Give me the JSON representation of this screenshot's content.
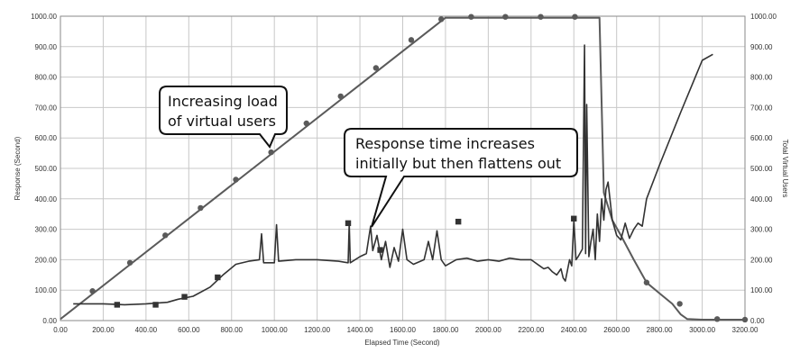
{
  "chart_data": {
    "type": "line",
    "xlabel": "Elapsed Time (Second)",
    "ylabel": "Response (Second)",
    "y2label": "Total Virtual Users",
    "xlim": [
      0,
      3200
    ],
    "ylim": [
      0,
      1000
    ],
    "y2lim": [
      0,
      1000
    ],
    "grid": true,
    "x_ticks": [
      "0.00",
      "200.00",
      "400.00",
      "600.00",
      "800.00",
      "1000.00",
      "1200.00",
      "1400.00",
      "1600.00",
      "1800.00",
      "2000.00",
      "2200.00",
      "2400.00",
      "2600.00",
      "2800.00",
      "3000.00",
      "3200.00"
    ],
    "y_ticks": [
      "0.00",
      "100.00",
      "200.00",
      "300.00",
      "400.00",
      "500.00",
      "600.00",
      "700.00",
      "800.00",
      "900.00",
      "1000.00"
    ],
    "y2_ticks": [
      "0.00",
      "100.00",
      "200.00",
      "300.00",
      "400.00",
      "500.00",
      "600.00",
      "700.00",
      "800.00",
      "900.00",
      "1000.00"
    ],
    "series": [
      {
        "key": "users",
        "color": "#5a5a5a",
        "marker": "circle",
        "axis": "right",
        "points": [
          [
            0,
            5
          ],
          [
            1800,
            995
          ],
          [
            2500,
            995
          ],
          [
            2520,
            995
          ],
          [
            2540,
            420
          ],
          [
            2580,
            330
          ],
          [
            2620,
            280
          ],
          [
            2680,
            200
          ],
          [
            2740,
            125
          ],
          [
            2800,
            90
          ],
          [
            2860,
            55
          ],
          [
            2900,
            20
          ],
          [
            2930,
            5
          ],
          [
            3000,
            3
          ],
          [
            3200,
            3
          ]
        ],
        "markers": [
          [
            150,
            97
          ],
          [
            325,
            190
          ],
          [
            490,
            280
          ],
          [
            655,
            370
          ],
          [
            820,
            463
          ],
          [
            985,
            553
          ],
          [
            1150,
            648
          ],
          [
            1310,
            737
          ],
          [
            1475,
            830
          ],
          [
            1640,
            922
          ],
          [
            1780,
            990
          ],
          [
            1920,
            998
          ],
          [
            2080,
            998
          ],
          [
            2245,
            998
          ],
          [
            2405,
            998
          ],
          [
            2740,
            125
          ],
          [
            2895,
            55
          ],
          [
            3070,
            5
          ],
          [
            3200,
            3
          ]
        ]
      },
      {
        "key": "response",
        "color": "#333333",
        "marker": "square",
        "axis": "left",
        "points": [
          [
            60,
            55
          ],
          [
            200,
            55
          ],
          [
            300,
            52
          ],
          [
            400,
            55
          ],
          [
            500,
            60
          ],
          [
            550,
            70
          ],
          [
            620,
            80
          ],
          [
            700,
            110
          ],
          [
            760,
            150
          ],
          [
            820,
            185
          ],
          [
            880,
            195
          ],
          [
            930,
            200
          ],
          [
            940,
            285
          ],
          [
            950,
            190
          ],
          [
            990,
            190
          ],
          [
            1000,
            190
          ],
          [
            1010,
            315
          ],
          [
            1020,
            195
          ],
          [
            1100,
            200
          ],
          [
            1200,
            200
          ],
          [
            1300,
            195
          ],
          [
            1345,
            190
          ],
          [
            1350,
            320
          ],
          [
            1355,
            190
          ],
          [
            1400,
            210
          ],
          [
            1430,
            220
          ],
          [
            1450,
            310
          ],
          [
            1460,
            230
          ],
          [
            1480,
            280
          ],
          [
            1500,
            200
          ],
          [
            1520,
            260
          ],
          [
            1540,
            175
          ],
          [
            1560,
            240
          ],
          [
            1580,
            195
          ],
          [
            1600,
            300
          ],
          [
            1620,
            200
          ],
          [
            1650,
            185
          ],
          [
            1700,
            200
          ],
          [
            1720,
            260
          ],
          [
            1740,
            200
          ],
          [
            1760,
            295
          ],
          [
            1780,
            200
          ],
          [
            1800,
            180
          ],
          [
            1850,
            200
          ],
          [
            1900,
            205
          ],
          [
            1950,
            195
          ],
          [
            2000,
            200
          ],
          [
            2050,
            195
          ],
          [
            2100,
            205
          ],
          [
            2150,
            200
          ],
          [
            2200,
            200
          ],
          [
            2240,
            180
          ],
          [
            2260,
            170
          ],
          [
            2280,
            175
          ],
          [
            2300,
            160
          ],
          [
            2320,
            150
          ],
          [
            2340,
            170
          ],
          [
            2350,
            140
          ],
          [
            2360,
            130
          ],
          [
            2380,
            200
          ],
          [
            2390,
            180
          ],
          [
            2400,
            330
          ],
          [
            2410,
            200
          ],
          [
            2420,
            210
          ],
          [
            2440,
            235
          ],
          [
            2450,
            905
          ],
          [
            2455,
            220
          ],
          [
            2460,
            710
          ],
          [
            2470,
            210
          ],
          [
            2480,
            260
          ],
          [
            2490,
            300
          ],
          [
            2500,
            200
          ],
          [
            2510,
            350
          ],
          [
            2520,
            260
          ],
          [
            2530,
            400
          ],
          [
            2540,
            330
          ],
          [
            2550,
            430
          ],
          [
            2560,
            455
          ],
          [
            2580,
            330
          ],
          [
            2600,
            280
          ],
          [
            2620,
            265
          ],
          [
            2640,
            320
          ],
          [
            2660,
            270
          ],
          [
            2680,
            300
          ],
          [
            2700,
            320
          ],
          [
            2720,
            310
          ],
          [
            2740,
            400
          ],
          [
            2800,
            510
          ],
          [
            2900,
            685
          ],
          [
            3000,
            855
          ],
          [
            3050,
            875
          ]
        ],
        "markers": [
          [
            265,
            52
          ],
          [
            445,
            52
          ],
          [
            580,
            78
          ],
          [
            735,
            142
          ],
          [
            1345,
            320
          ],
          [
            1495,
            232
          ],
          [
            1860,
            325
          ],
          [
            2400,
            335
          ]
        ]
      }
    ]
  },
  "callouts": [
    {
      "lines": [
        "Increasing load",
        "of virtual users"
      ]
    },
    {
      "lines": [
        "Response time increases",
        "initially but then flattens out"
      ]
    }
  ]
}
